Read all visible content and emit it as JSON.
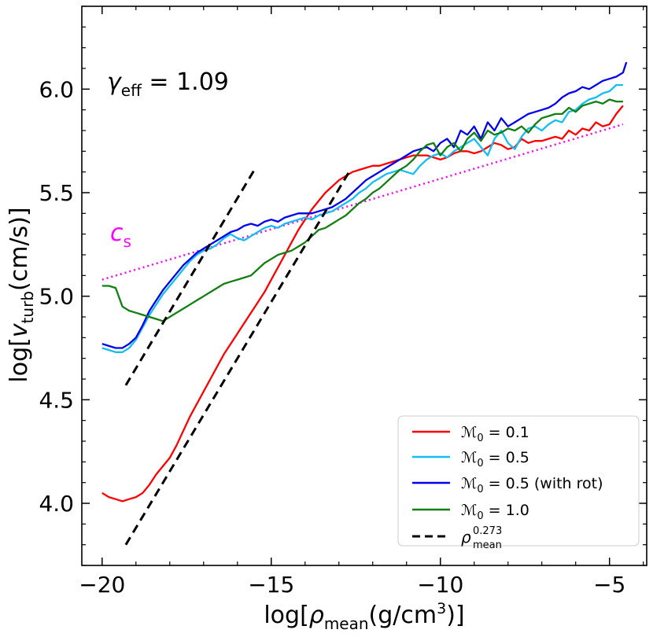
{
  "chart_data": {
    "type": "line",
    "xlabel_parts": [
      "log[",
      "ρ",
      "mean",
      "(g/cm",
      "3",
      ")]"
    ],
    "ylabel_parts": [
      "log[",
      "v",
      "turb",
      "(cm/s)]"
    ],
    "xlim": [
      -20.6,
      -3.9
    ],
    "ylim": [
      3.7,
      6.4
    ],
    "xticks": [
      -20,
      -15,
      -10,
      -5
    ],
    "xtick_labels": [
      "−20",
      "−15",
      "−10",
      "−5"
    ],
    "yticks": [
      4.0,
      4.5,
      5.0,
      5.5,
      6.0
    ],
    "ytick_labels": [
      "4.0",
      "4.5",
      "5.0",
      "5.5",
      "6.0"
    ],
    "annotation": {
      "symbol": "γ",
      "sub": "eff",
      "rest": " = 1.09"
    },
    "cs_label": {
      "symbol": "c",
      "sub": "s"
    },
    "legend_position": "bottom-right",
    "colors": {
      "red": "#ff0000",
      "cyan": "#13bff2",
      "blue": "#0000ee",
      "green": "#127f12",
      "dashed": "#000000",
      "cs": "#ff00ff"
    },
    "series": [
      {
        "name": "M0 = 0.1",
        "legend_parts": {
          "symbol": "ℳ",
          "sub": "0",
          "rest": " = 0.1"
        },
        "color": "#ff0000",
        "style": "solid",
        "x": [
          -20.0,
          -19.8,
          -19.6,
          -19.4,
          -19.2,
          -19.0,
          -18.8,
          -18.6,
          -18.4,
          -18.2,
          -18.0,
          -17.8,
          -17.6,
          -17.4,
          -17.2,
          -17.0,
          -16.8,
          -16.6,
          -16.4,
          -16.2,
          -16.0,
          -15.8,
          -15.6,
          -15.4,
          -15.2,
          -15.0,
          -14.8,
          -14.6,
          -14.4,
          -14.2,
          -14.0,
          -13.8,
          -13.6,
          -13.4,
          -13.2,
          -13.0,
          -12.8,
          -12.6,
          -12.4,
          -12.2,
          -12.0,
          -11.8,
          -11.6,
          -11.4,
          -11.2,
          -11.0,
          -10.8,
          -10.6,
          -10.4,
          -10.2,
          -10.0,
          -9.8,
          -9.6,
          -9.4,
          -9.2,
          -9.0,
          -8.8,
          -8.6,
          -8.4,
          -8.2,
          -8.0,
          -7.8,
          -7.6,
          -7.4,
          -7.2,
          -7.0,
          -6.8,
          -6.6,
          -6.4,
          -6.2,
          -6.0,
          -5.8,
          -5.6,
          -5.4,
          -5.2,
          -5.0,
          -4.8,
          -4.6
        ],
        "y": [
          4.05,
          4.03,
          4.02,
          4.01,
          4.02,
          4.03,
          4.05,
          4.09,
          4.14,
          4.18,
          4.22,
          4.28,
          4.35,
          4.42,
          4.48,
          4.54,
          4.6,
          4.66,
          4.72,
          4.77,
          4.82,
          4.87,
          4.92,
          4.97,
          5.02,
          5.08,
          5.14,
          5.2,
          5.26,
          5.32,
          5.37,
          5.42,
          5.46,
          5.5,
          5.53,
          5.56,
          5.58,
          5.6,
          5.61,
          5.62,
          5.63,
          5.63,
          5.64,
          5.65,
          5.66,
          5.67,
          5.68,
          5.68,
          5.68,
          5.67,
          5.66,
          5.67,
          5.69,
          5.7,
          5.7,
          5.69,
          5.7,
          5.72,
          5.74,
          5.73,
          5.71,
          5.72,
          5.76,
          5.74,
          5.75,
          5.75,
          5.76,
          5.77,
          5.76,
          5.8,
          5.78,
          5.81,
          5.8,
          5.84,
          5.82,
          5.83,
          5.88,
          5.92
        ]
      },
      {
        "name": "M0 = 0.5",
        "legend_parts": {
          "symbol": "ℳ",
          "sub": "0",
          "rest": " = 0.5"
        },
        "color": "#13bff2",
        "style": "solid",
        "x": [
          -20.0,
          -19.8,
          -19.6,
          -19.4,
          -19.2,
          -19.0,
          -18.8,
          -18.6,
          -18.4,
          -18.2,
          -18.0,
          -17.8,
          -17.6,
          -17.4,
          -17.2,
          -17.0,
          -16.8,
          -16.6,
          -16.4,
          -16.2,
          -16.0,
          -15.8,
          -15.6,
          -15.4,
          -15.2,
          -15.0,
          -14.8,
          -14.6,
          -14.4,
          -14.2,
          -14.0,
          -13.8,
          -13.6,
          -13.4,
          -13.2,
          -13.0,
          -12.8,
          -12.6,
          -12.4,
          -12.2,
          -12.0,
          -11.8,
          -11.6,
          -11.4,
          -11.2,
          -11.0,
          -10.8,
          -10.6,
          -10.4,
          -10.2,
          -10.0,
          -9.8,
          -9.6,
          -9.4,
          -9.2,
          -9.0,
          -8.8,
          -8.6,
          -8.4,
          -8.2,
          -8.0,
          -7.8,
          -7.6,
          -7.4,
          -7.2,
          -7.0,
          -6.8,
          -6.6,
          -6.4,
          -6.2,
          -6.0,
          -5.8,
          -5.6,
          -5.4,
          -5.2,
          -5.0,
          -4.8,
          -4.6
        ],
        "y": [
          4.75,
          4.74,
          4.73,
          4.73,
          4.75,
          4.79,
          4.85,
          4.91,
          4.96,
          5.01,
          5.05,
          5.09,
          5.13,
          5.17,
          5.2,
          5.22,
          5.23,
          5.25,
          5.28,
          5.3,
          5.28,
          5.27,
          5.29,
          5.31,
          5.33,
          5.34,
          5.33,
          5.35,
          5.36,
          5.37,
          5.38,
          5.37,
          5.39,
          5.4,
          5.41,
          5.43,
          5.45,
          5.47,
          5.5,
          5.52,
          5.55,
          5.57,
          5.59,
          5.6,
          5.61,
          5.6,
          5.59,
          5.63,
          5.66,
          5.68,
          5.69,
          5.67,
          5.7,
          5.72,
          5.74,
          5.76,
          5.72,
          5.68,
          5.76,
          5.8,
          5.74,
          5.71,
          5.77,
          5.81,
          5.82,
          5.8,
          5.83,
          5.85,
          5.84,
          5.89,
          5.9,
          5.93,
          5.95,
          5.96,
          5.98,
          5.99,
          6.02,
          6.02
        ]
      },
      {
        "name": "M0 = 0.5 (with rot)",
        "legend_parts": {
          "symbol": "ℳ",
          "sub": "0",
          "rest": " = 0.5 (with rot)"
        },
        "color": "#0000ee",
        "style": "solid",
        "x": [
          -20.0,
          -19.8,
          -19.6,
          -19.4,
          -19.2,
          -19.0,
          -18.8,
          -18.6,
          -18.4,
          -18.2,
          -18.0,
          -17.8,
          -17.6,
          -17.4,
          -17.2,
          -17.0,
          -16.8,
          -16.6,
          -16.4,
          -16.2,
          -16.0,
          -15.8,
          -15.6,
          -15.4,
          -15.2,
          -15.0,
          -14.8,
          -14.6,
          -14.4,
          -14.2,
          -14.0,
          -13.8,
          -13.6,
          -13.4,
          -13.2,
          -13.0,
          -12.8,
          -12.6,
          -12.4,
          -12.2,
          -12.0,
          -11.8,
          -11.6,
          -11.4,
          -11.2,
          -11.0,
          -10.8,
          -10.6,
          -10.4,
          -10.2,
          -10.0,
          -9.8,
          -9.6,
          -9.4,
          -9.2,
          -9.0,
          -8.8,
          -8.6,
          -8.4,
          -8.2,
          -8.0,
          -7.8,
          -7.6,
          -7.4,
          -7.2,
          -7.0,
          -6.8,
          -6.6,
          -6.4,
          -6.2,
          -6.0,
          -5.8,
          -5.6,
          -5.4,
          -5.2,
          -5.0,
          -4.8,
          -4.6,
          -4.5
        ],
        "y": [
          4.77,
          4.76,
          4.75,
          4.75,
          4.77,
          4.8,
          4.86,
          4.93,
          4.98,
          5.03,
          5.07,
          5.11,
          5.15,
          5.18,
          5.21,
          5.23,
          5.25,
          5.27,
          5.29,
          5.31,
          5.32,
          5.34,
          5.35,
          5.34,
          5.36,
          5.37,
          5.36,
          5.38,
          5.39,
          5.4,
          5.4,
          5.4,
          5.41,
          5.42,
          5.43,
          5.45,
          5.47,
          5.5,
          5.53,
          5.56,
          5.58,
          5.6,
          5.62,
          5.64,
          5.66,
          5.68,
          5.7,
          5.71,
          5.72,
          5.7,
          5.74,
          5.76,
          5.72,
          5.8,
          5.78,
          5.82,
          5.76,
          5.84,
          5.8,
          5.86,
          5.82,
          5.84,
          5.86,
          5.88,
          5.89,
          5.9,
          5.91,
          5.93,
          5.96,
          5.98,
          5.99,
          6.01,
          6.0,
          6.02,
          6.04,
          6.05,
          6.06,
          6.08,
          6.13
        ]
      },
      {
        "name": "M0 = 1.0",
        "legend_parts": {
          "symbol": "ℳ",
          "sub": "0",
          "rest": " = 1.0"
        },
        "color": "#127f12",
        "style": "solid",
        "x": [
          -20.0,
          -19.8,
          -19.6,
          -19.4,
          -19.2,
          -19.0,
          -18.8,
          -18.6,
          -18.4,
          -18.2,
          -18.0,
          -17.8,
          -17.6,
          -17.4,
          -17.2,
          -17.0,
          -16.8,
          -16.6,
          -16.4,
          -16.2,
          -16.0,
          -15.8,
          -15.6,
          -15.4,
          -15.2,
          -15.0,
          -14.8,
          -14.6,
          -14.4,
          -14.2,
          -14.0,
          -13.8,
          -13.6,
          -13.4,
          -13.2,
          -13.0,
          -12.8,
          -12.6,
          -12.4,
          -12.2,
          -12.0,
          -11.8,
          -11.6,
          -11.4,
          -11.2,
          -11.0,
          -10.8,
          -10.6,
          -10.4,
          -10.2,
          -10.0,
          -9.8,
          -9.6,
          -9.4,
          -9.2,
          -9.0,
          -8.8,
          -8.6,
          -8.4,
          -8.2,
          -8.0,
          -7.8,
          -7.6,
          -7.4,
          -7.2,
          -7.0,
          -6.8,
          -6.6,
          -6.4,
          -6.2,
          -6.0,
          -5.8,
          -5.6,
          -5.4,
          -5.2,
          -5.0,
          -4.8,
          -4.6
        ],
        "y": [
          5.05,
          5.05,
          5.04,
          4.95,
          4.93,
          4.92,
          4.91,
          4.9,
          4.89,
          4.88,
          4.9,
          4.92,
          4.94,
          4.96,
          4.98,
          5.0,
          5.02,
          5.04,
          5.06,
          5.07,
          5.08,
          5.09,
          5.1,
          5.13,
          5.16,
          5.18,
          5.2,
          5.21,
          5.22,
          5.24,
          5.26,
          5.29,
          5.32,
          5.33,
          5.35,
          5.37,
          5.39,
          5.42,
          5.45,
          5.47,
          5.5,
          5.52,
          5.55,
          5.58,
          5.61,
          5.63,
          5.66,
          5.7,
          5.73,
          5.74,
          5.68,
          5.72,
          5.74,
          5.7,
          5.76,
          5.79,
          5.75,
          5.8,
          5.78,
          5.79,
          5.81,
          5.8,
          5.82,
          5.79,
          5.83,
          5.86,
          5.87,
          5.88,
          5.88,
          5.91,
          5.89,
          5.92,
          5.93,
          5.94,
          5.93,
          5.95,
          5.94,
          5.94
        ]
      },
      {
        "name": "rho_mean^0.273",
        "legend_parts": {
          "symbol": "ρ",
          "sup": "0.273",
          "sub": "mean"
        },
        "color": "#000000",
        "style": "dashed",
        "segments": [
          {
            "x": [
              -19.3,
              -15.5
            ],
            "y": [
              4.57,
              5.61
            ]
          },
          {
            "x": [
              -19.3,
              -12.7
            ],
            "y": [
              3.8,
              5.6
            ]
          }
        ]
      }
    ],
    "cs_line": {
      "x": [
        -20.0,
        -4.6
      ],
      "y": [
        5.08,
        5.83
      ],
      "color": "#ff00ff",
      "style": "dotted"
    }
  }
}
